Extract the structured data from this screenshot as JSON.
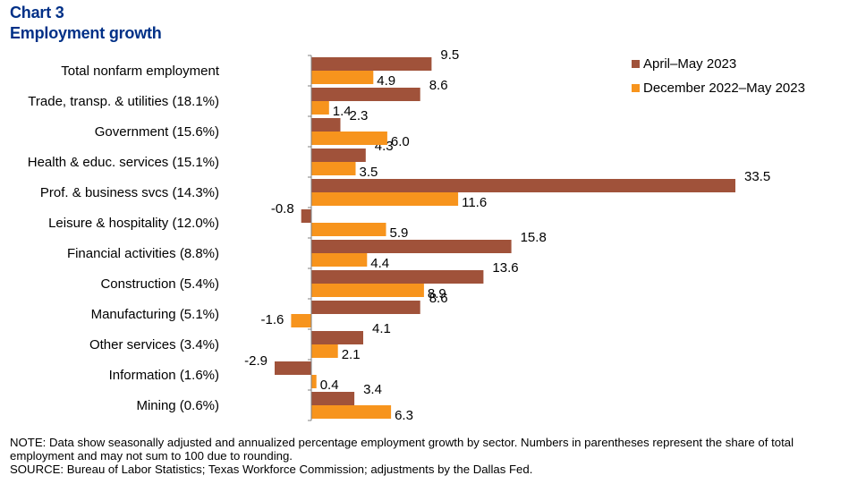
{
  "header": {
    "chart_number": "Chart 3",
    "title": "Employment growth"
  },
  "chart_data": {
    "type": "bar",
    "orientation": "horizontal",
    "title": "Employment growth",
    "categories": [
      "Total nonfarm employment",
      "Trade, transp. & utilities (18.1%)",
      "Government (15.6%)",
      "Health & educ. services (15.1%)",
      "Prof. & business svcs (14.3%)",
      "Leisure & hospitality (12.0%)",
      "Financial activities (8.8%)",
      "Construction (5.4%)",
      "Manufacturing (5.1%)",
      "Other services (3.4%)",
      "Information (1.6%)",
      "Mining (0.6%)"
    ],
    "series": [
      {
        "name": "April–May 2023",
        "color": "#A0523A",
        "values": [
          9.5,
          8.6,
          2.3,
          4.3,
          33.5,
          -0.8,
          15.8,
          13.6,
          8.6,
          4.1,
          -2.9,
          3.4
        ],
        "labels": [
          "9.5",
          "8.6",
          "2.3",
          "4.3",
          "33.5",
          "-0.8",
          "15.8",
          "13.6",
          "8.6",
          "4.1",
          "-2.9",
          "3.4"
        ]
      },
      {
        "name": "December 2022–May 2023",
        "color": "#F7941D",
        "values": [
          4.9,
          1.4,
          6.0,
          3.5,
          11.6,
          5.9,
          4.4,
          8.9,
          -1.6,
          2.1,
          0.4,
          6.3
        ],
        "labels": [
          "4.9",
          "1.4",
          "6.0",
          "3.5",
          "11.6",
          "5.9",
          "4.4",
          "8.9",
          "-1.6",
          "2.1",
          "0.4",
          "6.3"
        ]
      }
    ],
    "xlabel": "",
    "ylabel": "",
    "xlim": [
      -3,
      35
    ],
    "grid": false,
    "legend_position": "top-right"
  },
  "footer": {
    "note": "NOTE: Data show seasonally adjusted and annualized percentage employment growth by sector. Numbers in parentheses represent the share of total employment and may not sum to 100 due to rounding.",
    "source": "SOURCE: Bureau of Labor Statistics; Texas Workforce Commission; adjustments by the Dallas Fed."
  }
}
